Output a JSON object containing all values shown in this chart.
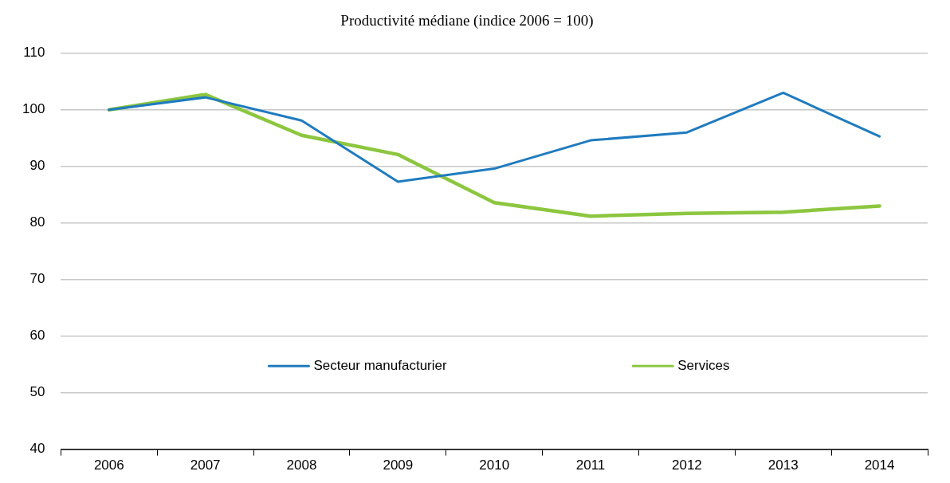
{
  "chart_data": {
    "type": "line",
    "title": "Productivité médiane (indice 2006 = 100)",
    "categories": [
      "2006",
      "2007",
      "2008",
      "2009",
      "2010",
      "2011",
      "2012",
      "2013",
      "2014"
    ],
    "series": [
      {
        "name": "Secteur manufacturier",
        "color": "#1f7bbf",
        "values": [
          100,
          102.2,
          98.1,
          87.3,
          89.6,
          94.6,
          96.0,
          103.0,
          95.3
        ]
      },
      {
        "name": "Services",
        "color": "#8cc63f",
        "values": [
          100,
          102.7,
          95.5,
          92.1,
          83.6,
          81.2,
          81.7,
          81.9,
          83.0
        ]
      }
    ],
    "ylim": [
      40,
      110
    ],
    "yticks": [
      40,
      50,
      60,
      70,
      80,
      90,
      100,
      110
    ],
    "grid": "y",
    "legend": "bottom",
    "marker": "none",
    "line_style": "solid"
  }
}
